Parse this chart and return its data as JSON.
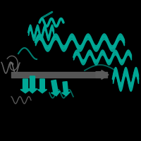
{
  "background_color": "#000000",
  "teal_color": "#00A896",
  "gray_color": "#808080",
  "figsize": [
    2.0,
    2.0
  ],
  "dpi": 100
}
